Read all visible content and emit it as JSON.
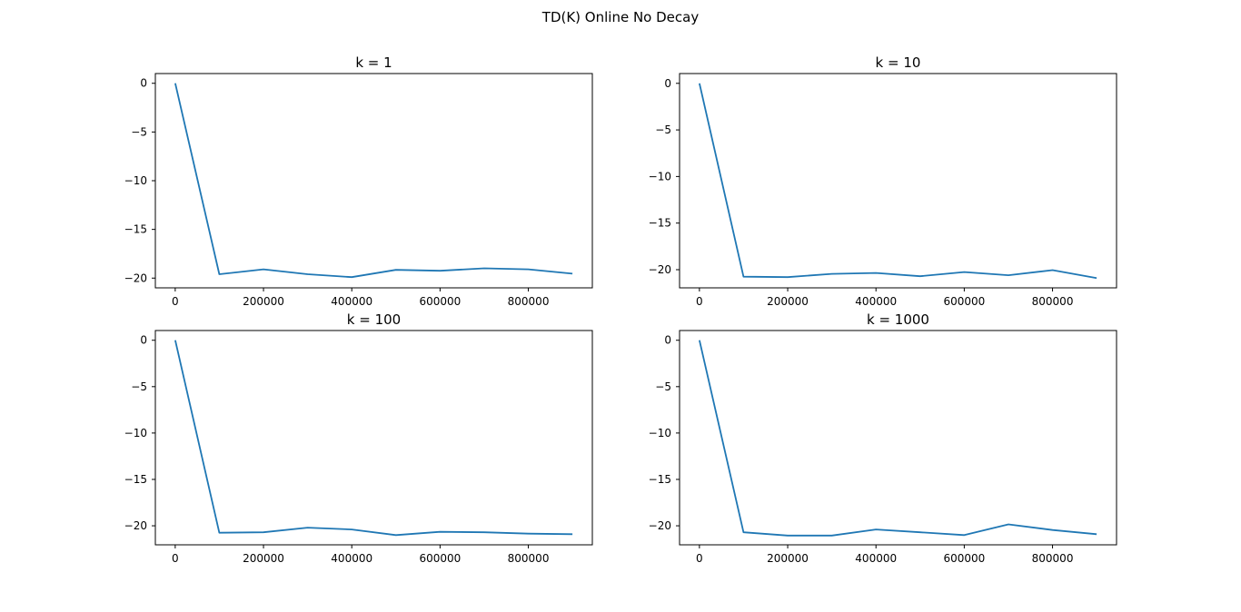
{
  "figure": {
    "suptitle": "TD(K) Online No Decay",
    "line_color": "#1f77b4"
  },
  "chart_data": [
    {
      "type": "line",
      "title": "k = 1",
      "xlabel": "",
      "ylabel": "",
      "x": [
        0,
        100000,
        200000,
        300000,
        400000,
        500000,
        600000,
        700000,
        800000,
        900000
      ],
      "series": [
        {
          "values": [
            0,
            -19.6,
            -19.1,
            -19.6,
            -19.9,
            -19.15,
            -19.25,
            -19.0,
            -19.1,
            -19.55
          ]
        }
      ],
      "xlim": [
        -45000,
        945000
      ],
      "ylim": [
        -21.0,
        1.0
      ],
      "xticks": [
        0,
        200000,
        400000,
        600000,
        800000
      ],
      "yticks": [
        0,
        -5,
        -10,
        -15,
        -20
      ],
      "grid": false
    },
    {
      "type": "line",
      "title": "k = 10",
      "xlabel": "",
      "ylabel": "",
      "x": [
        0,
        100000,
        200000,
        300000,
        400000,
        500000,
        600000,
        700000,
        800000,
        900000
      ],
      "series": [
        {
          "values": [
            0,
            -20.75,
            -20.8,
            -20.45,
            -20.35,
            -20.7,
            -20.25,
            -20.6,
            -20.05,
            -20.9
          ]
        }
      ],
      "xlim": [
        -45000,
        945000
      ],
      "ylim": [
        -21.95,
        1.05
      ],
      "xticks": [
        0,
        200000,
        400000,
        600000,
        800000
      ],
      "yticks": [
        0,
        -5,
        -10,
        -15,
        -20
      ],
      "grid": false
    },
    {
      "type": "line",
      "title": "k = 100",
      "xlabel": "",
      "ylabel": "",
      "x": [
        0,
        100000,
        200000,
        300000,
        400000,
        500000,
        600000,
        700000,
        800000,
        900000
      ],
      "series": [
        {
          "values": [
            0,
            -20.75,
            -20.7,
            -20.2,
            -20.4,
            -21.0,
            -20.65,
            -20.7,
            -20.85,
            -20.9
          ]
        }
      ],
      "xlim": [
        -45000,
        945000
      ],
      "ylim": [
        -22.05,
        1.05
      ],
      "xticks": [
        0,
        200000,
        400000,
        600000,
        800000
      ],
      "yticks": [
        0,
        -5,
        -10,
        -15,
        -20
      ],
      "grid": false
    },
    {
      "type": "line",
      "title": "k = 1000",
      "xlabel": "",
      "ylabel": "",
      "x": [
        0,
        100000,
        200000,
        300000,
        400000,
        500000,
        600000,
        700000,
        800000,
        900000
      ],
      "series": [
        {
          "values": [
            0,
            -20.7,
            -21.05,
            -21.05,
            -20.4,
            -20.7,
            -21.0,
            -19.85,
            -20.45,
            -20.9
          ]
        }
      ],
      "xlim": [
        -45000,
        945000
      ],
      "ylim": [
        -22.05,
        1.05
      ],
      "xticks": [
        0,
        200000,
        400000,
        600000,
        800000
      ],
      "yticks": [
        0,
        -5,
        -10,
        -15,
        -20
      ],
      "grid": false
    }
  ]
}
